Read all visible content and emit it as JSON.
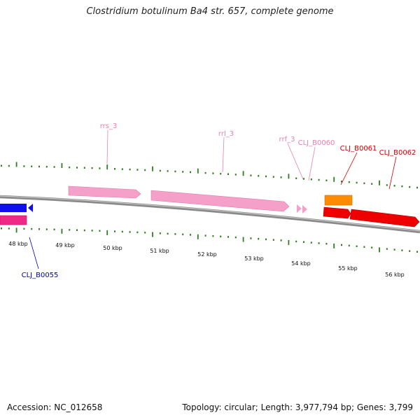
{
  "title": "Clostridium botulinum Ba4 str. 657, complete genome",
  "footer": {
    "accession": "Accession: NC_012658",
    "summary": "Topology: circular; Length: 3,977,794 bp; Genes: 3,799"
  },
  "colors": {
    "backbone": "#8a8a8a",
    "tick": "#2e7d1e",
    "rrna": "#f4a0c8",
    "cds_red": "#ee0000",
    "cds_blue": "#1010ee",
    "cds_magenta": "#ee2a88",
    "cds_orange": "#ff8c00",
    "label_blue": "#0000bb",
    "label_red": "#cc0000",
    "label_pink": "#e880b0"
  },
  "scale_labels": [
    "48 kbp",
    "49 kbp",
    "50 kbp",
    "51 kbp",
    "52 kbp",
    "53 kbp",
    "54 kbp",
    "55 kbp",
    "56 kbp"
  ],
  "features": [
    {
      "name": "CLJ_B0055",
      "kind": "cds",
      "color": "blue"
    },
    {
      "name": "rrs_3",
      "kind": "rRNA",
      "color": "pink"
    },
    {
      "name": "rrl_3",
      "kind": "rRNA",
      "color": "pink"
    },
    {
      "name": "rrf_3",
      "kind": "rRNA",
      "color": "pink"
    },
    {
      "name": "CLJ_B0060",
      "kind": "rRNA",
      "color": "pink"
    },
    {
      "name": "CLJ_B0061",
      "kind": "cds",
      "color": "red"
    },
    {
      "name": "CLJ_B0062",
      "kind": "cds",
      "color": "red"
    }
  ]
}
